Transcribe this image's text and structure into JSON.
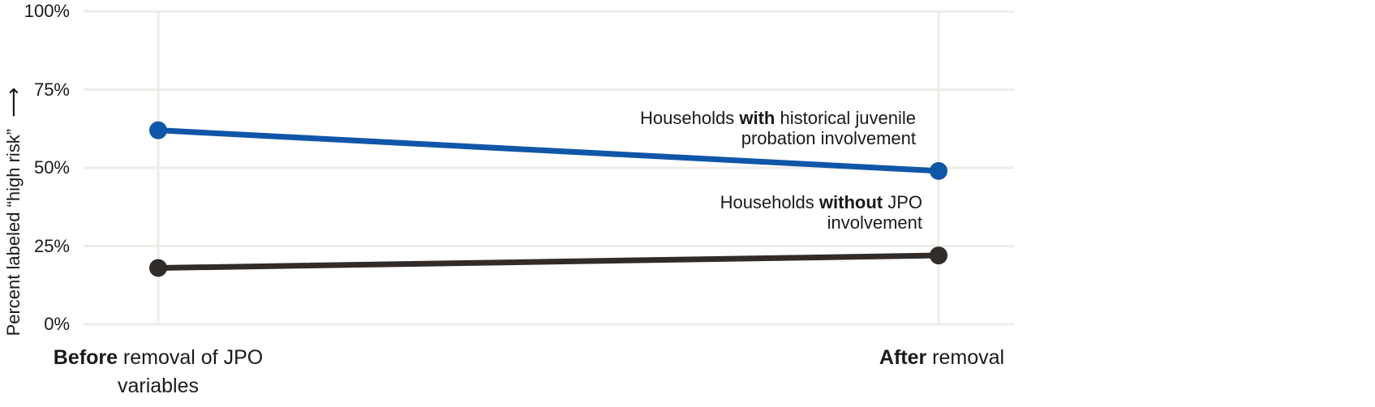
{
  "chart_data": {
    "type": "line",
    "variant": "slope-chart",
    "categories": [
      "Before removal of JPO variables",
      "After removal"
    ],
    "series": [
      {
        "name": "Households with historical juvenile probation involvement",
        "values": [
          62,
          49
        ],
        "color": "#1056a8"
      },
      {
        "name": "Households without JPO involvement",
        "values": [
          18,
          22
        ],
        "color": "#322c29"
      }
    ],
    "ylabel": "Percent labeled “high risk”",
    "ylim": [
      0,
      100
    ],
    "y_tick_values": [
      100,
      75,
      50,
      25,
      0
    ],
    "grid": true,
    "legend": "inline-annotations"
  },
  "axes": {
    "y_title": "Percent labeled “high risk”",
    "arrow_glyph": "⟶",
    "y_ticks": [
      "100%",
      "75%",
      "50%",
      "25%",
      "0%"
    ]
  },
  "annotations": {
    "with_jpo": {
      "line1_pre": "Households ",
      "line1_bold": "with",
      "line1_post": " historical juvenile",
      "line2": "probation involvement"
    },
    "without_jpo": {
      "line1_pre": "Households ",
      "line1_bold": "without",
      "line1_post": " JPO",
      "line2": "involvement"
    }
  },
  "x_labels": {
    "before": {
      "bold": "Before",
      "rest": " removal of JPO",
      "line2": "variables"
    },
    "after": {
      "bold": "After",
      "rest": " removal"
    }
  },
  "colors": {
    "gridline": "#f0ece8",
    "text": "#1a1a1a",
    "with_jpo_line": "#1056a8",
    "without_jpo_line": "#322c29"
  }
}
